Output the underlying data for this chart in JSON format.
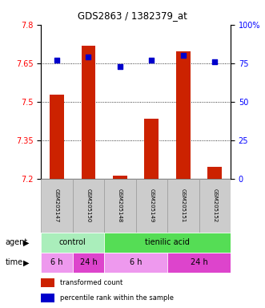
{
  "title": "GDS2863 / 1382379_at",
  "samples": [
    "GSM205147",
    "GSM205150",
    "GSM205148",
    "GSM205149",
    "GSM205151",
    "GSM205152"
  ],
  "bar_values": [
    7.527,
    7.718,
    7.213,
    7.435,
    7.695,
    7.245
  ],
  "percentile_values": [
    77,
    79,
    73,
    77,
    80,
    76
  ],
  "bar_color": "#cc2200",
  "dot_color": "#0000cc",
  "ylim_left": [
    7.2,
    7.8
  ],
  "ylim_right": [
    0,
    100
  ],
  "yticks_left": [
    7.2,
    7.35,
    7.5,
    7.65,
    7.8
  ],
  "yticks_right": [
    0,
    25,
    50,
    75,
    100
  ],
  "ytick_labels_left": [
    "7.2",
    "7.35",
    "7.5",
    "7.65",
    "7.8"
  ],
  "ytick_labels_right": [
    "0",
    "25",
    "50",
    "75",
    "100%"
  ],
  "gridlines": [
    7.35,
    7.5,
    7.65
  ],
  "agent_labels": [
    {
      "text": "control",
      "start": 0,
      "end": 2,
      "color": "#aaeebb"
    },
    {
      "text": "tienilic acid",
      "start": 2,
      "end": 6,
      "color": "#55dd55"
    }
  ],
  "time_labels": [
    {
      "text": "6 h",
      "start": 0,
      "end": 1,
      "color": "#ee99ee"
    },
    {
      "text": "24 h",
      "start": 1,
      "end": 2,
      "color": "#dd44cc"
    },
    {
      "text": "6 h",
      "start": 2,
      "end": 4,
      "color": "#ee99ee"
    },
    {
      "text": "24 h",
      "start": 4,
      "end": 6,
      "color": "#dd44cc"
    }
  ],
  "legend_bar_label": "transformed count",
  "legend_dot_label": "percentile rank within the sample",
  "bar_width": 0.45,
  "sample_box_color": "#cccccc",
  "sample_box_edge": "#999999"
}
